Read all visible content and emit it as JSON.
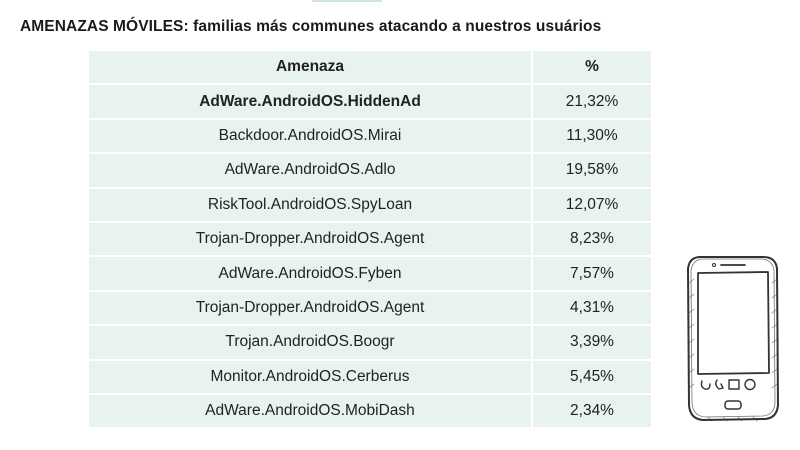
{
  "title": {
    "bold": "AMENAZAS MÓVILES:",
    "rest": " familias más communes atacando a nuestros usuários"
  },
  "table": {
    "headers": {
      "name": "Amenaza",
      "pct": "%"
    },
    "rows": [
      {
        "name": "AdWare.AndroidOS.HiddenAd",
        "pct": "21,32%"
      },
      {
        "name": "Backdoor.AndroidOS.Mirai",
        "pct": "11,30%"
      },
      {
        "name": "AdWare.AndroidOS.Adlo",
        "pct": "19,58%"
      },
      {
        "name": "RiskTool.AndroidOS.SpyLoan",
        "pct": "12,07%"
      },
      {
        "name": "Trojan-Dropper.AndroidOS.Agent",
        "pct": "8,23%"
      },
      {
        "name": "AdWare.AndroidOS.Fyben",
        "pct": "7,57%"
      },
      {
        "name": "Trojan-Dropper.AndroidOS.Agent",
        "pct": "4,31%"
      },
      {
        "name": "Trojan.AndroidOS.Boogr",
        "pct": "3,39%"
      },
      {
        "name": "Monitor.AndroidOS.Cerberus",
        "pct": "5,45%"
      },
      {
        "name": "AdWare.AndroidOS.MobiDash",
        "pct": "2,34%"
      }
    ]
  },
  "colors": {
    "cell_bg": "#e8f2f0",
    "text": "#222222"
  },
  "icons": {
    "illustration": "smartphone-sketch-icon"
  }
}
